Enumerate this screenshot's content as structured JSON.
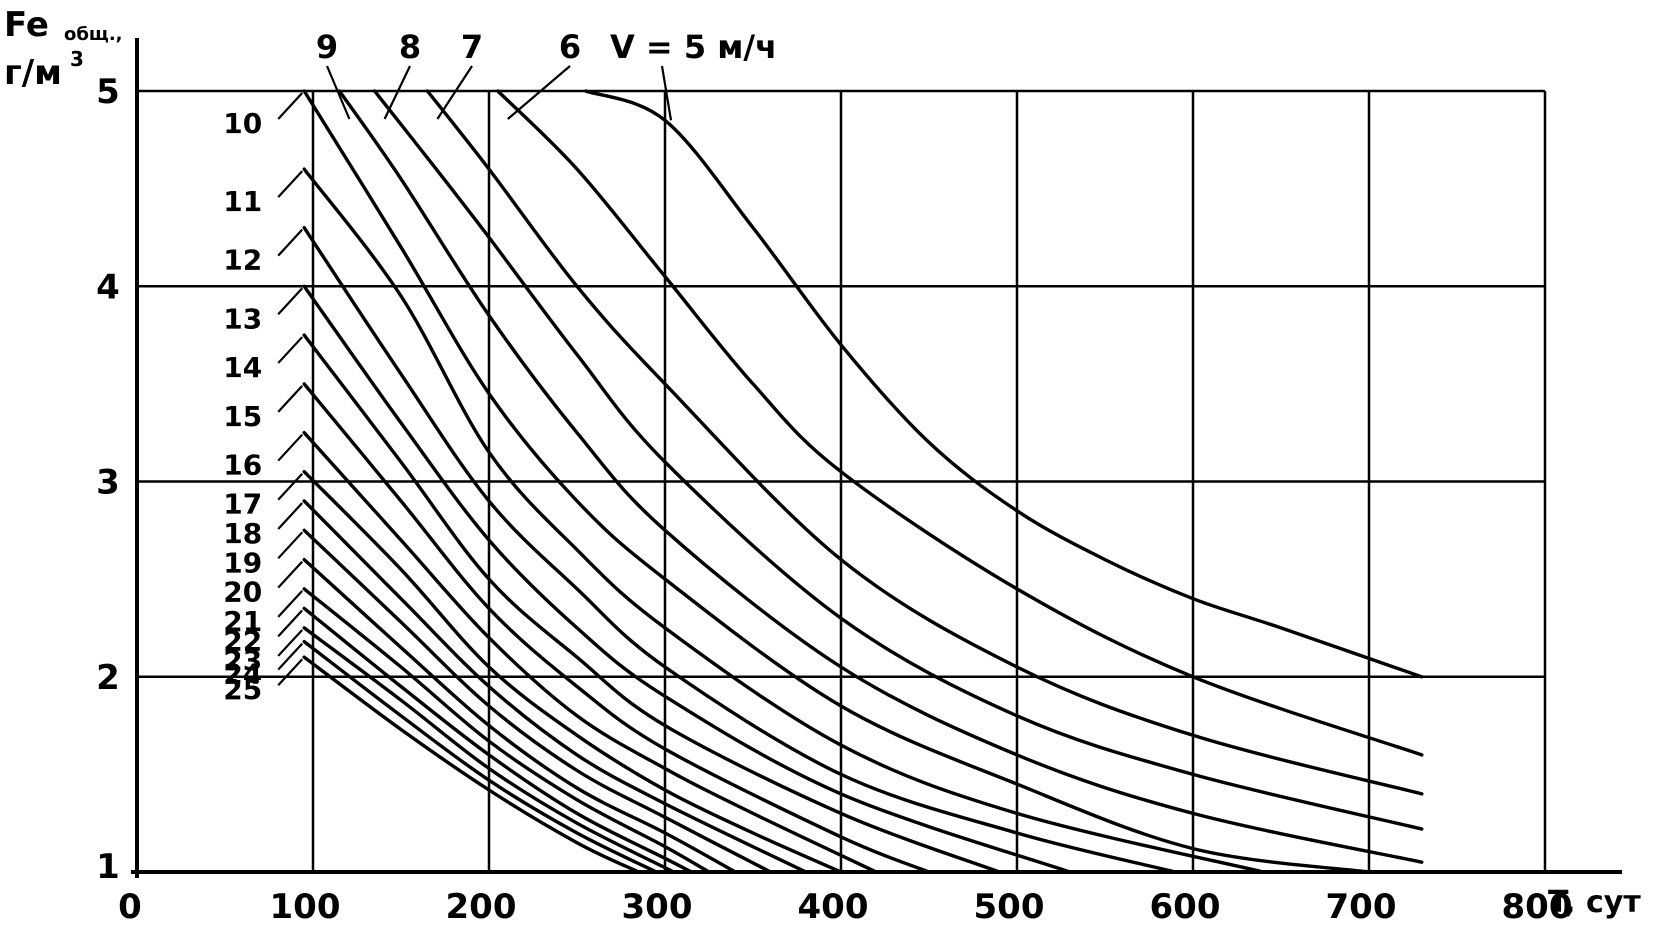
{
  "chart_data": {
    "type": "line",
    "y_axis_title": "Fe",
    "y_axis_title_sub": "общ.,",
    "y_axis_unit": "г/м",
    "y_axis_unit_sup": "3",
    "x_axis_title": "T, сут",
    "xlim": [
      0,
      800
    ],
    "ylim": [
      1,
      5
    ],
    "x_ticks": [
      "0",
      "100",
      "200",
      "300",
      "400",
      "500",
      "600",
      "700",
      "800"
    ],
    "x_tick_values": [
      0,
      100,
      200,
      300,
      400,
      500,
      600,
      700,
      800
    ],
    "y_ticks": [
      "1",
      "2",
      "3",
      "4",
      "5"
    ],
    "y_tick_values": [
      1,
      2,
      3,
      4,
      5
    ],
    "grid": true,
    "v_label": "V = 5 м/ч",
    "series": [
      {
        "name": "5",
        "label_pos": "top",
        "x": [
          255,
          300,
          350,
          400,
          450,
          500,
          550,
          600,
          650,
          730
        ],
        "y": [
          5.0,
          4.85,
          4.3,
          3.7,
          3.2,
          2.85,
          2.6,
          2.4,
          2.25,
          2.0
        ]
      },
      {
        "name": "6",
        "label_pos": "top",
        "x": [
          205,
          250,
          300,
          350,
          400,
          500,
          600,
          730
        ],
        "y": [
          5.0,
          4.6,
          4.05,
          3.5,
          3.05,
          2.45,
          2.0,
          1.6
        ]
      },
      {
        "name": "7",
        "label_pos": "top",
        "x": [
          165,
          200,
          250,
          300,
          400,
          500,
          600,
          730
        ],
        "y": [
          5.0,
          4.6,
          4.0,
          3.5,
          2.6,
          2.05,
          1.7,
          1.4
        ]
      },
      {
        "name": "8",
        "label_pos": "top",
        "x": [
          135,
          170,
          200,
          250,
          300,
          400,
          500,
          600,
          730
        ],
        "y": [
          5.0,
          4.6,
          4.25,
          3.65,
          3.1,
          2.3,
          1.8,
          1.5,
          1.22
        ]
      },
      {
        "name": "9",
        "label_pos": "top",
        "x": [
          115,
          150,
          200,
          250,
          300,
          400,
          500,
          600,
          730
        ],
        "y": [
          5.0,
          4.55,
          3.85,
          3.25,
          2.75,
          2.05,
          1.6,
          1.3,
          1.05
        ]
      },
      {
        "name": "10",
        "label_pos": "left",
        "x": [
          95,
          150,
          200,
          250,
          300,
          400,
          500,
          600,
          700
        ],
        "y": [
          5.0,
          4.2,
          3.45,
          2.9,
          2.5,
          1.85,
          1.45,
          1.12,
          1.0
        ]
      },
      {
        "name": "11",
        "label_pos": "left",
        "x": [
          95,
          150,
          200,
          250,
          300,
          400,
          500,
          640
        ],
        "y": [
          4.6,
          3.95,
          3.15,
          2.65,
          2.25,
          1.65,
          1.3,
          1.0
        ]
      },
      {
        "name": "12",
        "label_pos": "left",
        "x": [
          95,
          150,
          200,
          250,
          300,
          400,
          500,
          590
        ],
        "y": [
          4.3,
          3.55,
          2.9,
          2.45,
          2.05,
          1.5,
          1.2,
          1.0
        ]
      },
      {
        "name": "13",
        "label_pos": "left",
        "x": [
          95,
          150,
          200,
          250,
          300,
          400,
          530
        ],
        "y": [
          4.0,
          3.3,
          2.7,
          2.25,
          1.9,
          1.4,
          1.0
        ]
      },
      {
        "name": "14",
        "label_pos": "left",
        "x": [
          95,
          150,
          200,
          250,
          300,
          400,
          490
        ],
        "y": [
          3.75,
          3.1,
          2.5,
          2.1,
          1.75,
          1.3,
          1.0
        ]
      },
      {
        "name": "15",
        "label_pos": "left",
        "x": [
          95,
          150,
          200,
          250,
          300,
          400,
          450
        ],
        "y": [
          3.5,
          2.9,
          2.35,
          1.95,
          1.63,
          1.18,
          1.0
        ]
      },
      {
        "name": "16",
        "label_pos": "left",
        "x": [
          95,
          150,
          200,
          250,
          300,
          350,
          420
        ],
        "y": [
          3.25,
          2.7,
          2.2,
          1.8,
          1.53,
          1.3,
          1.0
        ]
      },
      {
        "name": "17",
        "label_pos": "left",
        "x": [
          95,
          150,
          200,
          250,
          300,
          350,
          400
        ],
        "y": [
          3.05,
          2.55,
          2.05,
          1.7,
          1.42,
          1.2,
          1.0
        ]
      },
      {
        "name": "18",
        "label_pos": "left",
        "x": [
          95,
          150,
          200,
          250,
          300,
          380
        ],
        "y": [
          2.9,
          2.4,
          1.95,
          1.6,
          1.35,
          1.0
        ]
      },
      {
        "name": "19",
        "label_pos": "left",
        "x": [
          95,
          150,
          200,
          250,
          300,
          360
        ],
        "y": [
          2.75,
          2.28,
          1.85,
          1.52,
          1.28,
          1.0
        ]
      },
      {
        "name": "20",
        "label_pos": "left",
        "x": [
          95,
          150,
          200,
          250,
          300,
          340
        ],
        "y": [
          2.6,
          2.15,
          1.75,
          1.43,
          1.2,
          1.0
        ]
      },
      {
        "name": "21",
        "label_pos": "left",
        "x": [
          95,
          150,
          200,
          250,
          300,
          325
        ],
        "y": [
          2.45,
          2.05,
          1.67,
          1.37,
          1.13,
          1.0
        ]
      },
      {
        "name": "22",
        "label_pos": "left",
        "x": [
          95,
          150,
          200,
          250,
          300,
          315
        ],
        "y": [
          2.35,
          1.95,
          1.6,
          1.3,
          1.07,
          1.0
        ]
      },
      {
        "name": "23",
        "label_pos": "left",
        "x": [
          95,
          150,
          200,
          250,
          305
        ],
        "y": [
          2.25,
          1.88,
          1.53,
          1.25,
          1.0
        ]
      },
      {
        "name": "24",
        "label_pos": "left",
        "x": [
          95,
          150,
          200,
          250,
          295
        ],
        "y": [
          2.18,
          1.8,
          1.47,
          1.2,
          1.0
        ]
      },
      {
        "name": "25",
        "label_pos": "left",
        "x": [
          95,
          150,
          200,
          250,
          285
        ],
        "y": [
          2.1,
          1.73,
          1.42,
          1.15,
          1.0
        ]
      }
    ]
  }
}
